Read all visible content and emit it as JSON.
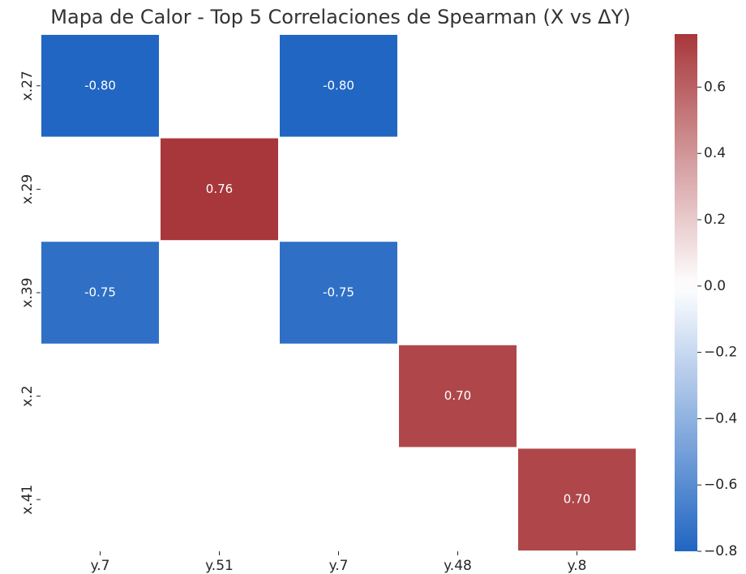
{
  "chart_data": {
    "type": "heatmap",
    "title": "Mapa de Calor - Top 5 Correlaciones de Spearman (X vs ΔY)",
    "x_categories": [
      "y.7",
      "y.51",
      "y.7",
      "y.48",
      "y.8"
    ],
    "y_categories": [
      "x.27",
      "x.29",
      "x.39",
      "x.2",
      "x.41"
    ],
    "values": [
      [
        -0.8,
        null,
        -0.8,
        null,
        null
      ],
      [
        null,
        0.76,
        null,
        null,
        null
      ],
      [
        -0.75,
        null,
        -0.75,
        null,
        null
      ],
      [
        null,
        null,
        null,
        0.7,
        null
      ],
      [
        null,
        null,
        null,
        null,
        0.7
      ]
    ],
    "value_labels": [
      [
        "-0.80",
        null,
        "-0.80",
        null,
        null
      ],
      [
        null,
        "0.76",
        null,
        null,
        null
      ],
      [
        "-0.75",
        null,
        "-0.75",
        null,
        null
      ],
      [
        null,
        null,
        null,
        "0.70",
        null
      ],
      [
        null,
        null,
        null,
        null,
        "0.70"
      ]
    ],
    "clim": [
      -0.8,
      0.76
    ],
    "center": 0,
    "colormap": [
      "#2166c2",
      "#ffffff",
      "#a8373b"
    ],
    "cticks": [
      {
        "value": -0.8,
        "label": "−0.8"
      },
      {
        "value": -0.6,
        "label": "−0.6"
      },
      {
        "value": -0.4,
        "label": "−0.4"
      },
      {
        "value": -0.2,
        "label": "−0.2"
      },
      {
        "value": 0,
        "label": "0.0"
      },
      0.2,
      0.4,
      0.6
    ]
  }
}
